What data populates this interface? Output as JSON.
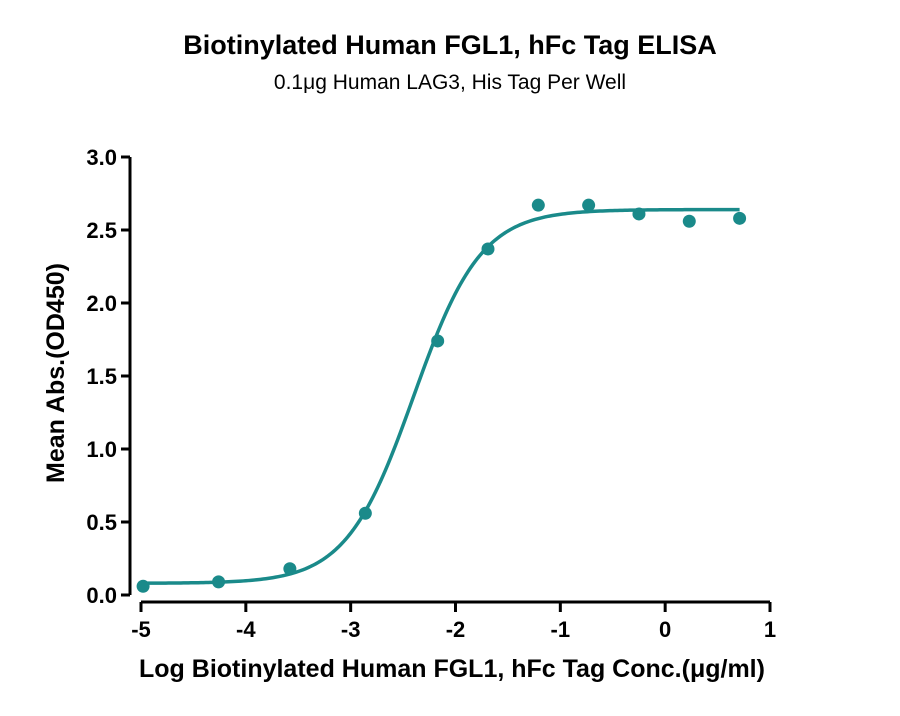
{
  "chart_data": {
    "type": "scatter",
    "title": "Biotinylated Human FGL1, hFc Tag ELISA",
    "subtitle": "0.1μg Human LAG3, His Tag Per Well",
    "xlabel": "Log Biotinylated Human FGL1, hFc Tag Conc.(μg/ml)",
    "ylabel": "Mean Abs.(OD450)",
    "xlim": [
      -5,
      1
    ],
    "ylim": [
      0,
      3
    ],
    "x_ticks": [
      "-5",
      "-4",
      "-3",
      "-2",
      "-1",
      "0",
      "1"
    ],
    "y_ticks": [
      "0.0",
      "0.5",
      "1.0",
      "1.5",
      "2.0",
      "2.5",
      "3.0"
    ],
    "grid": false,
    "color": "#1a8a8a",
    "series": [
      {
        "points": [
          {
            "x": -4.98,
            "y": 0.06
          },
          {
            "x": -4.26,
            "y": 0.09
          },
          {
            "x": -3.58,
            "y": 0.18
          },
          {
            "x": -2.86,
            "y": 0.56
          },
          {
            "x": -2.17,
            "y": 1.74
          },
          {
            "x": -1.69,
            "y": 2.37
          },
          {
            "x": -1.21,
            "y": 2.67
          },
          {
            "x": -0.73,
            "y": 2.67
          },
          {
            "x": -0.25,
            "y": 2.61
          },
          {
            "x": 0.23,
            "y": 2.56
          },
          {
            "x": 0.71,
            "y": 2.58
          }
        ],
        "fit": {
          "model": "4PL",
          "bottom": 0.08,
          "top": 2.64,
          "log_ec50": -2.4,
          "hill_slope": 1.35
        }
      }
    ]
  }
}
